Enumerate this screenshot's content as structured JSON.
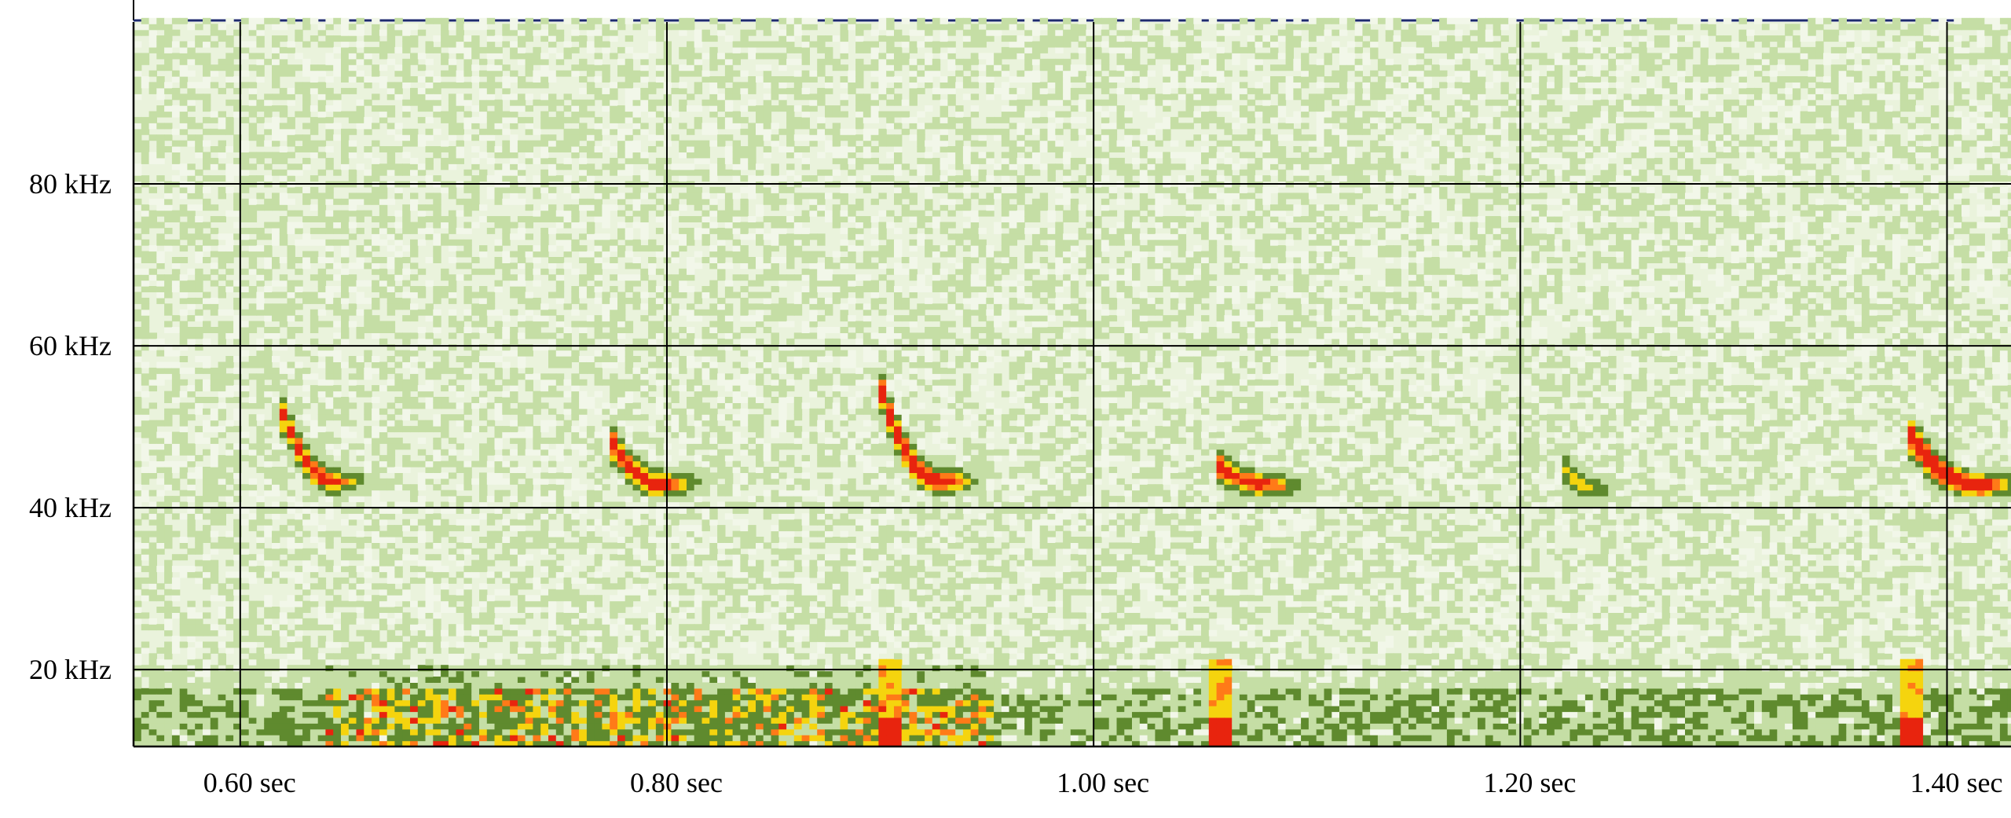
{
  "chart_data": {
    "type": "heatmap",
    "title": "",
    "xlabel": "",
    "ylabel": "",
    "x_unit": "sec",
    "y_unit": "kHz",
    "xlim": [
      0.55,
      1.43
    ],
    "ylim": [
      10.5,
      100
    ],
    "x_ticks": [
      0.6,
      0.8,
      1.0,
      1.2,
      1.4
    ],
    "x_tick_labels": [
      "0.60 sec",
      "0.80 sec",
      "1.00 sec",
      "1.20 sec",
      "1.40 sec"
    ],
    "y_ticks": [
      20,
      40,
      60,
      80
    ],
    "y_tick_labels": [
      "20 kHz",
      "40 kHz",
      "60 kHz",
      "80 kHz"
    ],
    "grid": true,
    "colormap": [
      "#f2f7e9",
      "#c5dea5",
      "#5f8a2e",
      "#f5d40e",
      "#ff7a18",
      "#e8240e"
    ],
    "calls": [
      {
        "time": 0.619,
        "f_start": 51,
        "f_end": 43,
        "duration": 0.024,
        "intensity": 0.85
      },
      {
        "time": 0.772,
        "f_start": 48,
        "f_end": 42.5,
        "duration": 0.026,
        "intensity": 0.9
      },
      {
        "time": 0.899,
        "f_start": 54,
        "f_end": 43,
        "duration": 0.028,
        "intensity": 1.0
      },
      {
        "time": 1.056,
        "f_start": 45,
        "f_end": 42.5,
        "duration": 0.026,
        "intensity": 0.8
      },
      {
        "time": 1.219,
        "f_start": 44.5,
        "f_end": 42,
        "duration": 0.014,
        "intensity": 0.6
      },
      {
        "time": 1.38,
        "f_start": 49,
        "f_end": 42.5,
        "duration": 0.034,
        "intensity": 1.0
      }
    ],
    "low_freq_noise": {
      "f_max": 20,
      "t_hot": [
        0.64,
        0.95
      ]
    },
    "broadband_pulses": [
      0.903,
      1.056,
      1.383
    ]
  }
}
